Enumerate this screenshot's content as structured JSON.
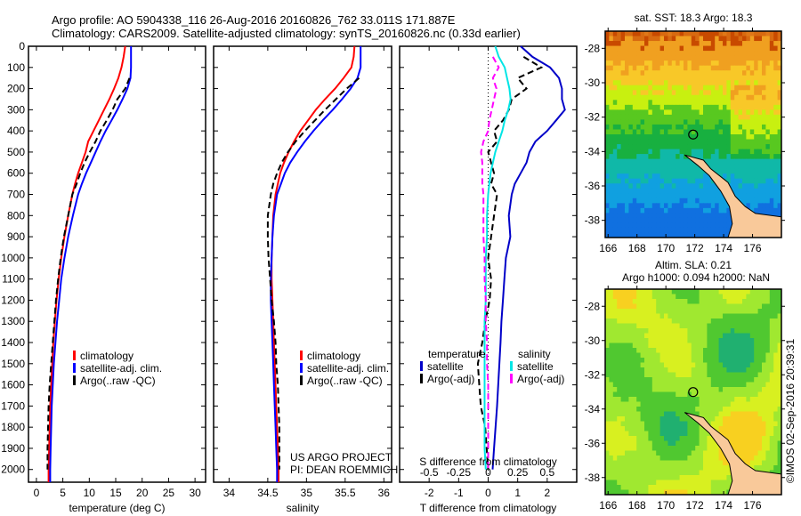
{
  "header": {
    "line1": "Argo profile: AO 5904338_116 26-Aug-2016 20160826_762 33.011S 171.887E",
    "line2": "Climatology: CARS2009. Satellite-adjusted climatology: synTS_20160826.nc (0.33d earlier)"
  },
  "credits": {
    "project": "US ARGO PROJECT",
    "pi": "PI: DEAN ROEMMICH",
    "watermark": "©IMOS 02-Sep-2016 20:39:31"
  },
  "colors": {
    "climatology": "#ff0000",
    "satellite": "#0000ff",
    "argo": "#000000",
    "salinity_satellite": "#00e5e5",
    "salinity_argo": "#ff00ff",
    "land": "#f9c99a"
  },
  "chart_data": [
    {
      "type": "line",
      "id": "temperature",
      "xlabel": "temperature (deg C)",
      "ylabel": "",
      "xlim": [
        -1.5,
        32
      ],
      "ylim": [
        2060,
        0
      ],
      "xticks": [
        0,
        5,
        10,
        15,
        20,
        25,
        30
      ],
      "yticks": [
        0,
        100,
        200,
        300,
        400,
        500,
        600,
        700,
        800,
        900,
        1000,
        1100,
        1200,
        1300,
        1400,
        1500,
        1600,
        1700,
        1800,
        1900,
        2000
      ],
      "legend": {
        "placement": "center-left",
        "entries": [
          "climatology",
          "satellite-adj. clim.",
          "Argo(..raw -QC)"
        ]
      },
      "depth": [
        0,
        50,
        100,
        150,
        200,
        250,
        300,
        350,
        400,
        450,
        500,
        550,
        600,
        650,
        700,
        800,
        900,
        1000,
        1100,
        1200,
        1300,
        1400,
        1500,
        1600,
        1700,
        1800,
        1900,
        2000,
        2060
      ],
      "series": [
        {
          "name": "climatology",
          "style": "solid",
          "color": "#ff0000",
          "values": [
            16.8,
            16.5,
            16.1,
            15.5,
            14.7,
            13.8,
            12.8,
            11.8,
            10.8,
            9.8,
            9.3,
            8.6,
            7.9,
            7.3,
            6.8,
            6.0,
            5.3,
            4.7,
            4.2,
            3.8,
            3.5,
            3.2,
            3.0,
            2.8,
            2.6,
            2.5,
            2.4,
            2.3,
            2.3
          ]
        },
        {
          "name": "satellite-adj. clim.",
          "style": "solid",
          "color": "#0000ff",
          "values": [
            17.9,
            17.9,
            17.9,
            17.8,
            17.2,
            16.3,
            15.3,
            14.2,
            13.1,
            12.1,
            11.2,
            10.3,
            9.4,
            8.6,
            7.9,
            6.9,
            6.0,
            5.3,
            4.7,
            4.3,
            3.9,
            3.6,
            3.3,
            3.1,
            2.9,
            2.8,
            2.7,
            2.6,
            2.6
          ]
        },
        {
          "name": "Argo(..raw -QC)",
          "style": "dashed",
          "color": "#000000",
          "values": [
            null,
            null,
            null,
            17.6,
            16.8,
            15.3,
            14.4,
            13.3,
            12.1,
            11.2,
            10.1,
            9.1,
            8.3,
            7.6,
            6.8,
            6.0,
            5.2,
            4.6,
            4.1,
            3.7,
            3.4,
            3.1,
            2.8,
            2.5,
            2.3,
            2.2,
            2.1,
            2.1,
            null
          ]
        }
      ]
    },
    {
      "type": "line",
      "id": "salinity",
      "xlabel": "salinity",
      "xlim": [
        33.8,
        36.1
      ],
      "ylim": [
        2060,
        0
      ],
      "xticks": [
        34,
        34.5,
        35,
        35.5,
        36
      ],
      "legend": {
        "placement": "center-right",
        "entries": [
          "climatology",
          "satellite-adj. clim.",
          "Argo(..raw -QC)"
        ]
      },
      "depth": [
        0,
        50,
        100,
        150,
        200,
        250,
        300,
        350,
        400,
        450,
        500,
        550,
        600,
        650,
        700,
        800,
        900,
        1000,
        1100,
        1200,
        1300,
        1400,
        1500,
        1600,
        1700,
        1800,
        1900,
        2000,
        2060
      ],
      "series": [
        {
          "name": "climatology",
          "style": "solid",
          "color": "#ff0000",
          "values": [
            35.62,
            35.61,
            35.58,
            35.48,
            35.37,
            35.24,
            35.12,
            35.02,
            34.92,
            34.84,
            34.77,
            34.71,
            34.66,
            34.63,
            34.6,
            34.57,
            34.56,
            34.55,
            34.55,
            34.56,
            34.57,
            34.58,
            34.59,
            34.6,
            34.61,
            34.62,
            34.63,
            34.64,
            34.64
          ]
        },
        {
          "name": "satellite-adj. clim.",
          "style": "solid",
          "color": "#0000ff",
          "values": [
            35.7,
            35.7,
            35.7,
            35.66,
            35.57,
            35.46,
            35.34,
            35.21,
            35.09,
            34.98,
            34.88,
            34.79,
            34.72,
            34.67,
            34.62,
            34.58,
            34.56,
            34.55,
            34.54,
            34.54,
            34.55,
            34.56,
            34.57,
            34.58,
            34.59,
            34.6,
            34.61,
            34.62,
            34.62
          ]
        },
        {
          "name": "Argo(..raw -QC)",
          "style": "dashed",
          "color": "#000000",
          "values": [
            null,
            null,
            null,
            35.68,
            35.52,
            35.38,
            35.24,
            35.11,
            34.98,
            34.86,
            34.76,
            34.68,
            34.62,
            34.57,
            34.54,
            34.5,
            34.5,
            34.51,
            34.53,
            34.55,
            34.58,
            34.6,
            34.61,
            34.63,
            34.64,
            34.65,
            34.65,
            34.65,
            null
          ]
        }
      ]
    },
    {
      "type": "line",
      "id": "difference",
      "xlabel": "T difference from climatology",
      "xlabel_secondary": "S difference from climatology",
      "xlim": [
        -3,
        3
      ],
      "xlim_secondary": [
        -0.75,
        0.75
      ],
      "ylim": [
        2060,
        0
      ],
      "xticks": [
        -2,
        -1,
        0,
        1,
        2
      ],
      "xticks_secondary": [
        -0.5,
        -0.25,
        0,
        0.25,
        0.5
      ],
      "legend": {
        "placement": "bottom",
        "groups": [
          {
            "title": "temperature",
            "entries": [
              "satellite",
              "Argo(-adj)"
            ]
          },
          {
            "title": "salinity",
            "entries": [
              "satellite",
              "Argo(-adj)"
            ]
          }
        ]
      },
      "depth": [
        0,
        50,
        100,
        150,
        200,
        250,
        300,
        350,
        400,
        450,
        500,
        550,
        600,
        650,
        700,
        800,
        900,
        1000,
        1100,
        1200,
        1300,
        1400,
        1500,
        1600,
        1700,
        1800,
        1900,
        2000
      ],
      "series": [
        {
          "name": "temperature satellite",
          "axis": "T",
          "style": "solid",
          "color": "#0000c8",
          "values": [
            1.1,
            1.5,
            2.1,
            2.4,
            2.5,
            2.5,
            2.6,
            2.3,
            2.0,
            1.6,
            1.4,
            1.3,
            1.1,
            0.9,
            0.8,
            0.7,
            0.75,
            0.6,
            0.55,
            0.5,
            0.45,
            0.42,
            0.38,
            0.34,
            0.3,
            0.25,
            0.2,
            0.15
          ]
        },
        {
          "name": "temperature Argo(-adj)",
          "axis": "T",
          "style": "dashed",
          "color": "#000000",
          "values": [
            null,
            1.2,
            1.8,
            1.0,
            1.3,
            0.8,
            0.7,
            0.5,
            0.2,
            0.3,
            0.0,
            0.1,
            0.2,
            0.1,
            0.3,
            0.2,
            0.1,
            0.0,
            0.1,
            0.05,
            -0.1,
            -0.2,
            -0.35,
            -0.3,
            -0.25,
            -0.1,
            -0.05,
            0.0
          ]
        },
        {
          "name": "salinity satellite",
          "axis": "S",
          "style": "solid",
          "color": "#00e5e5",
          "values": [
            0.06,
            0.09,
            0.14,
            0.16,
            0.18,
            0.19,
            0.17,
            0.14,
            0.12,
            0.09,
            0.06,
            0.04,
            0.02,
            0.01,
            0.0,
            -0.01,
            -0.01,
            -0.02,
            -0.02,
            -0.02,
            -0.03,
            -0.03,
            -0.03,
            -0.03,
            -0.03,
            -0.03,
            -0.03,
            -0.02
          ]
        },
        {
          "name": "salinity Argo(-adj)",
          "axis": "S",
          "style": "dashed",
          "color": "#ff00ff",
          "values": [
            null,
            0.04,
            0.09,
            0.04,
            0.07,
            0.05,
            0.03,
            0.01,
            0.0,
            -0.04,
            -0.06,
            -0.05,
            -0.05,
            -0.05,
            -0.04,
            -0.04,
            -0.04,
            -0.03,
            -0.03,
            -0.02,
            -0.02,
            -0.01,
            -0.01,
            0.0,
            0.0,
            0.0,
            0.0,
            0.0
          ]
        }
      ]
    },
    {
      "type": "heatmap",
      "id": "sst-map",
      "title": "sat. SST: 18.3 Argo: 18.3",
      "xlim": [
        165.8,
        178
      ],
      "ylim": [
        -39,
        -27
      ],
      "xticks": [
        166,
        168,
        170,
        172,
        174,
        176
      ],
      "yticks": [
        -28,
        -30,
        -32,
        -34,
        -36,
        -38
      ],
      "argo_position": {
        "lon": 171.887,
        "lat": -33.011
      }
    },
    {
      "type": "heatmap",
      "id": "sla-map",
      "title": "Altim. SLA: 0.21",
      "subtitle": "Argo h1000: 0.094 h2000: NaN",
      "xlim": [
        165.8,
        178
      ],
      "ylim": [
        -39,
        -27
      ],
      "xticks": [
        166,
        168,
        170,
        172,
        174,
        176
      ],
      "yticks": [
        -28,
        -30,
        -32,
        -34,
        -36,
        -38
      ],
      "argo_position": {
        "lon": 171.887,
        "lat": -33.011
      }
    }
  ]
}
